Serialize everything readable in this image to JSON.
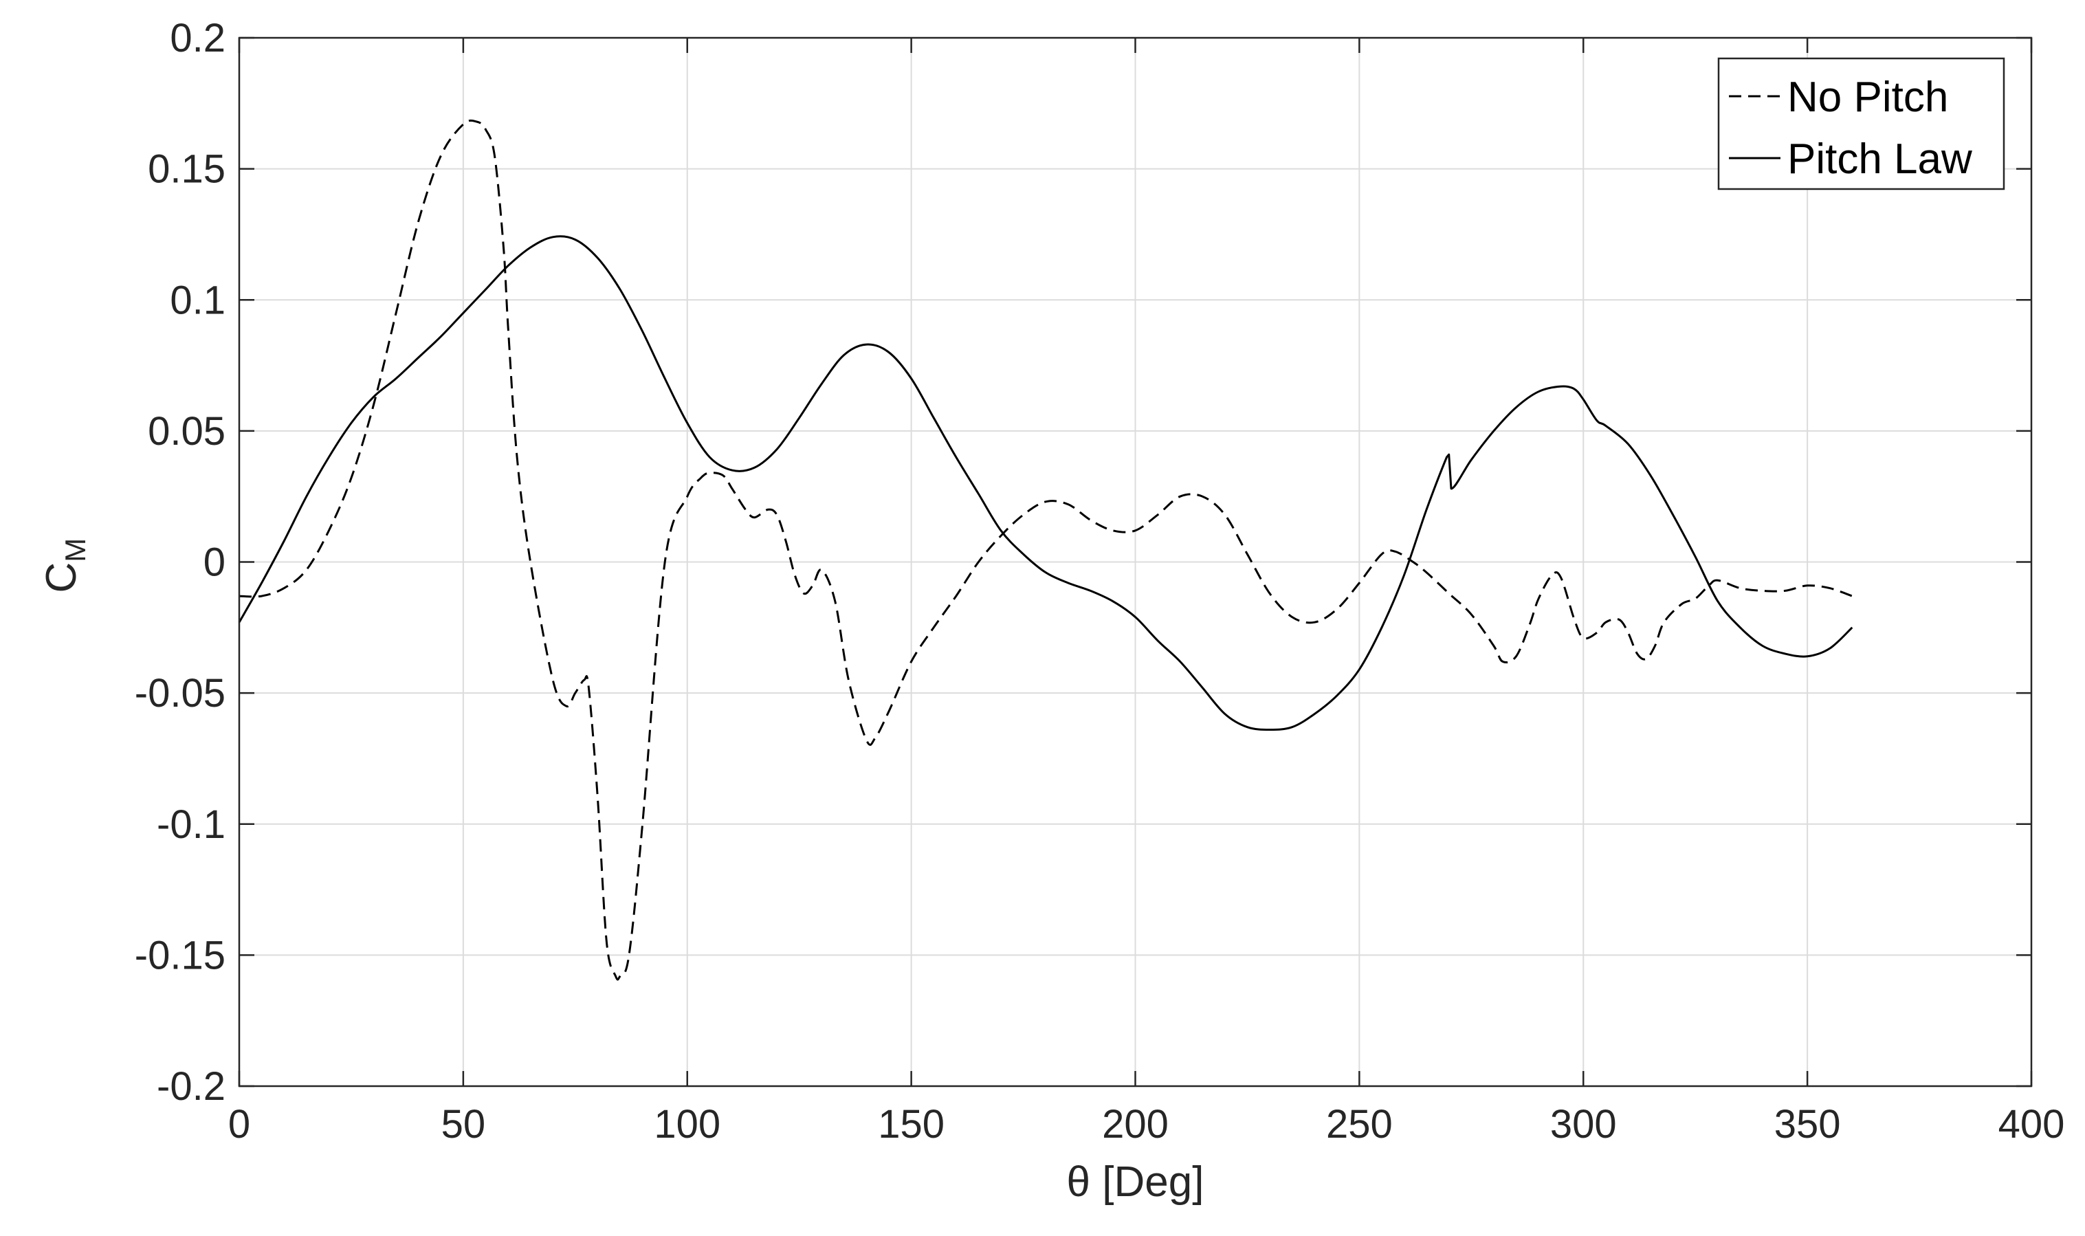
{
  "chart_data": {
    "type": "line",
    "xlabel": "θ [Deg]",
    "ylabel": "C",
    "ylabel_subscript": "M",
    "xlim": [
      0,
      400
    ],
    "ylim": [
      -0.2,
      0.2
    ],
    "xticks": [
      0,
      50,
      100,
      150,
      200,
      250,
      300,
      350,
      400
    ],
    "yticks": [
      -0.2,
      -0.15,
      -0.1,
      -0.05,
      0,
      0.05,
      0.1,
      0.15,
      0.2
    ],
    "xtick_labels": [
      "0",
      "50",
      "100",
      "150",
      "200",
      "250",
      "300",
      "350",
      "400"
    ],
    "ytick_labels": [
      "-0.2",
      "-0.15",
      "-0.1",
      "-0.05",
      "0",
      "0.05",
      "0.1",
      "0.15",
      "0.2"
    ],
    "grid": true,
    "legend_position": "top-right",
    "series": [
      {
        "name": "No Pitch",
        "style": "dashed",
        "color": "#000000",
        "x": [
          0,
          5,
          10,
          15,
          20,
          25,
          30,
          35,
          40,
          45,
          50,
          53,
          55,
          57,
          59,
          60,
          62,
          65,
          70,
          73,
          75,
          77,
          78,
          80,
          82,
          84,
          85,
          87,
          90,
          95,
          100,
          103,
          105,
          108,
          110,
          113,
          115,
          118,
          120,
          122,
          124,
          126,
          128,
          130,
          133,
          136,
          140,
          142,
          145,
          150,
          155,
          160,
          165,
          170,
          175,
          180,
          185,
          190,
          195,
          200,
          205,
          210,
          215,
          220,
          225,
          230,
          235,
          240,
          245,
          250,
          255,
          258,
          262,
          265,
          270,
          275,
          280,
          282,
          285,
          288,
          290,
          293,
          295,
          298,
          300,
          303,
          305,
          308,
          310,
          312,
          314,
          316,
          318,
          322,
          325,
          328,
          330,
          335,
          340,
          345,
          350,
          355,
          360
        ],
        "y": [
          -0.013,
          -0.013,
          -0.01,
          -0.003,
          0.012,
          0.032,
          0.06,
          0.095,
          0.13,
          0.155,
          0.167,
          0.168,
          0.165,
          0.155,
          0.12,
          0.09,
          0.04,
          0.0,
          -0.045,
          -0.055,
          -0.05,
          -0.045,
          -0.048,
          -0.09,
          -0.145,
          -0.158,
          -0.158,
          -0.15,
          -0.1,
          0.0,
          0.025,
          0.032,
          0.034,
          0.033,
          0.028,
          0.02,
          0.017,
          0.02,
          0.018,
          0.008,
          -0.005,
          -0.012,
          -0.009,
          -0.003,
          -0.015,
          -0.045,
          -0.068,
          -0.067,
          -0.057,
          -0.038,
          -0.025,
          -0.013,
          0.0,
          0.01,
          0.018,
          0.023,
          0.022,
          0.016,
          0.012,
          0.012,
          0.018,
          0.025,
          0.025,
          0.018,
          0.003,
          -0.012,
          -0.021,
          -0.023,
          -0.018,
          -0.008,
          0.003,
          0.004,
          0.0,
          -0.004,
          -0.012,
          -0.02,
          -0.032,
          -0.038,
          -0.036,
          -0.024,
          -0.014,
          -0.005,
          -0.006,
          -0.022,
          -0.029,
          -0.027,
          -0.023,
          -0.022,
          -0.027,
          -0.035,
          -0.037,
          -0.032,
          -0.023,
          -0.016,
          -0.014,
          -0.009,
          -0.007,
          -0.01,
          -0.011,
          -0.011,
          -0.009,
          -0.01,
          -0.013
        ]
      },
      {
        "name": "Pitch Law",
        "style": "solid",
        "color": "#000000",
        "x": [
          0,
          5,
          10,
          15,
          20,
          25,
          30,
          35,
          40,
          45,
          50,
          55,
          60,
          65,
          70,
          75,
          80,
          85,
          90,
          95,
          100,
          105,
          110,
          115,
          120,
          125,
          130,
          135,
          140,
          145,
          150,
          155,
          160,
          165,
          170,
          175,
          180,
          185,
          190,
          195,
          200,
          205,
          210,
          215,
          220,
          225,
          230,
          235,
          240,
          245,
          250,
          255,
          260,
          265,
          269.5,
          270,
          270.5,
          275,
          280,
          285,
          290,
          295,
          298,
          300,
          303,
          305,
          310,
          315,
          320,
          325,
          330,
          335,
          340,
          345,
          350,
          355,
          360
        ],
        "y": [
          -0.023,
          -0.008,
          0.008,
          0.025,
          0.04,
          0.053,
          0.063,
          0.07,
          0.078,
          0.086,
          0.095,
          0.104,
          0.113,
          0.12,
          0.124,
          0.123,
          0.116,
          0.104,
          0.088,
          0.07,
          0.053,
          0.04,
          0.035,
          0.036,
          0.043,
          0.055,
          0.068,
          0.079,
          0.083,
          0.08,
          0.07,
          0.055,
          0.04,
          0.026,
          0.012,
          0.003,
          -0.004,
          -0.008,
          -0.011,
          -0.015,
          -0.021,
          -0.03,
          -0.038,
          -0.048,
          -0.058,
          -0.063,
          -0.064,
          -0.063,
          -0.058,
          -0.051,
          -0.041,
          -0.025,
          -0.005,
          0.02,
          0.04,
          0.041,
          0.028,
          0.039,
          0.05,
          0.059,
          0.065,
          0.067,
          0.066,
          0.062,
          0.054,
          0.052,
          0.045,
          0.033,
          0.018,
          0.002,
          -0.015,
          -0.025,
          -0.032,
          -0.035,
          -0.036,
          -0.033,
          -0.025
        ]
      }
    ]
  }
}
